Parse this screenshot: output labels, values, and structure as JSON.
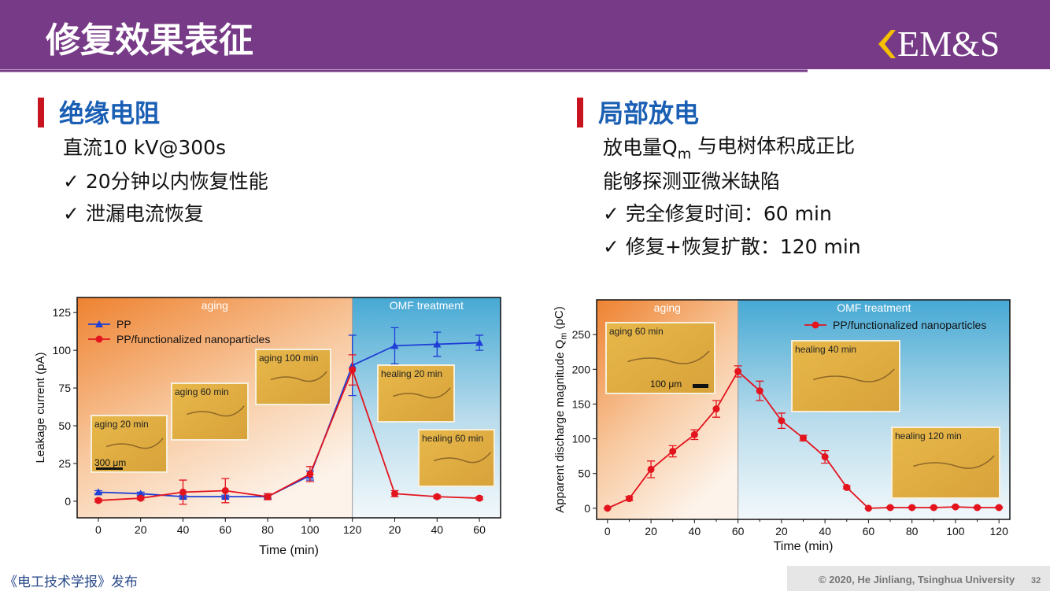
{
  "header": {
    "title": "修复效果表征",
    "logo": "EM&S"
  },
  "sections": [
    {
      "heading": "绝缘电阻",
      "lines": [
        [
          "直流10 kV@300s"
        ],
        [
          "✓  20分钟以内恢复性能"
        ],
        [
          "✓  泄漏电流恢复"
        ]
      ]
    },
    {
      "heading": "局部放电",
      "lines": [
        [
          "放电量Q",
          "m",
          " 与电树体积成正比"
        ],
        [
          "能够探测亚微米缺陷"
        ],
        [
          "✓  完全修复时间：60 min"
        ],
        [
          "✓  修复+恢复扩散：120 min"
        ]
      ]
    }
  ],
  "footer": {
    "source": "《电工技术学报》发布",
    "copyright": "© 2020, He Jinliang, Tsinghua University",
    "page": "32"
  },
  "chart_data": [
    {
      "type": "line",
      "x_label": "Time (min)",
      "y_label": [
        "Leakage current (pA)"
      ],
      "regions": [
        "aging",
        "OMF treatment"
      ],
      "categories": [
        "0",
        "20",
        "40",
        "60",
        "80",
        "100",
        "120",
        "20",
        "40",
        "60"
      ],
      "ylim": [
        -11,
        135
      ],
      "yticks": [
        0,
        25,
        50,
        75,
        100,
        125
      ],
      "legend": "upper left",
      "series": [
        {
          "name": "PP",
          "color": "#1f3fd6",
          "marker": "triangle",
          "values": [
            6,
            5,
            3,
            3,
            3,
            17,
            90,
            103,
            104,
            105
          ],
          "errors": [
            1,
            1,
            1,
            1,
            1,
            3,
            20,
            12,
            8,
            5
          ]
        },
        {
          "name": "PP/functionalized nanoparticles",
          "color": "#e3141e",
          "marker": "circle",
          "values": [
            0.5,
            2,
            6,
            7,
            3,
            18,
            87,
            5,
            3,
            2
          ],
          "errors": [
            1,
            1,
            8,
            8,
            2,
            5,
            10,
            2,
            1,
            1
          ]
        }
      ],
      "insets": [
        {
          "label": "aging 20 min",
          "scale_bar": "300 μm"
        },
        {
          "label": "aging 60 min"
        },
        {
          "label": "aging 100 min"
        },
        {
          "label": "healing 20 min"
        },
        {
          "label": "healing 60 min"
        }
      ]
    },
    {
      "type": "line",
      "x_label": "Time (min)",
      "y_label": [
        "Apparent discharge magnitude Q",
        "m",
        " (pC)"
      ],
      "regions": [
        "aging",
        "OMF treatment"
      ],
      "categories": [
        "0",
        null,
        "20",
        null,
        "40",
        null,
        "60",
        null,
        "20",
        null,
        "40",
        null,
        "60",
        null,
        "80",
        null,
        "100",
        null,
        "120"
      ],
      "ylim": [
        -16,
        300
      ],
      "yticks": [
        0,
        50,
        100,
        150,
        200,
        250
      ],
      "legend": "upper right",
      "series": [
        {
          "name": "PP/functionalized nanoparticles",
          "color": "#e3141e",
          "marker": "circle",
          "values": [
            0,
            14,
            56,
            82,
            106,
            143,
            197,
            169,
            126,
            101,
            74,
            30,
            0,
            1,
            1,
            1,
            2,
            1,
            1
          ],
          "errors": [
            0,
            3,
            12,
            8,
            7,
            12,
            8,
            14,
            11,
            4,
            9,
            2,
            0,
            1,
            1,
            1,
            1,
            1,
            1
          ]
        }
      ],
      "insets": [
        {
          "label": "aging 60 min",
          "scale_bar": "100 μm"
        },
        {
          "label": "healing 40 min"
        },
        {
          "label": "healing 120 min"
        }
      ]
    }
  ]
}
